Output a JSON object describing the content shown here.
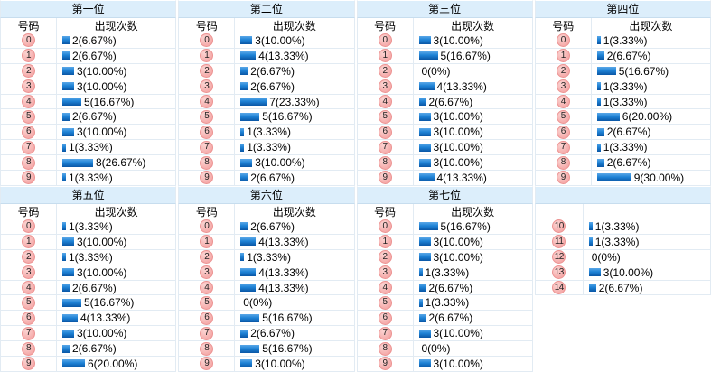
{
  "column_headers": {
    "number": "号码",
    "frequency": "出现次数"
  },
  "colors": {
    "title_bg": "#dceefb",
    "title_border": "#c7ddee",
    "line": "#e2ebf3",
    "bar_top": "#5aa8e8",
    "bar_mid": "#1f83d6",
    "bar_bottom": "#0a57a6",
    "badge_bg": "#f5a9a8",
    "badge_light": "#fbd4d2",
    "badge_border": "#ec9392"
  },
  "chart_data": [
    {
      "type": "bar",
      "title": "第一位",
      "xlabel": "号码",
      "ylabel": "出现次数",
      "show_header": true,
      "continuation": false,
      "categories": [
        "0",
        "1",
        "2",
        "3",
        "4",
        "5",
        "6",
        "7",
        "8",
        "9"
      ],
      "values": [
        2,
        2,
        3,
        3,
        5,
        2,
        3,
        1,
        8,
        1
      ],
      "labels": [
        "2(6.67%)",
        "2(6.67%)",
        "3(10.00%)",
        "3(10.00%)",
        "5(16.67%)",
        "2(6.67%)",
        "3(10.00%)",
        "1(3.33%)",
        "8(26.67%)",
        "1(3.33%)"
      ]
    },
    {
      "type": "bar",
      "title": "第二位",
      "xlabel": "号码",
      "ylabel": "出现次数",
      "show_header": true,
      "continuation": false,
      "categories": [
        "0",
        "1",
        "2",
        "3",
        "4",
        "5",
        "6",
        "7",
        "8",
        "9"
      ],
      "values": [
        3,
        4,
        2,
        2,
        7,
        5,
        1,
        1,
        3,
        2
      ],
      "labels": [
        "3(10.00%)",
        "4(13.33%)",
        "2(6.67%)",
        "2(6.67%)",
        "7(23.33%)",
        "5(16.67%)",
        "1(3.33%)",
        "1(3.33%)",
        "3(10.00%)",
        "2(6.67%)"
      ]
    },
    {
      "type": "bar",
      "title": "第三位",
      "xlabel": "号码",
      "ylabel": "出现次数",
      "show_header": true,
      "continuation": false,
      "categories": [
        "0",
        "1",
        "2",
        "3",
        "4",
        "5",
        "6",
        "7",
        "8",
        "9"
      ],
      "values": [
        3,
        5,
        0,
        4,
        2,
        3,
        3,
        3,
        3,
        4
      ],
      "labels": [
        "3(10.00%)",
        "5(16.67%)",
        "0(0%)",
        "4(13.33%)",
        "2(6.67%)",
        "3(10.00%)",
        "3(10.00%)",
        "3(10.00%)",
        "3(10.00%)",
        "4(13.33%)"
      ]
    },
    {
      "type": "bar",
      "title": "第四位",
      "xlabel": "号码",
      "ylabel": "出现次数",
      "show_header": true,
      "continuation": false,
      "categories": [
        "0",
        "1",
        "2",
        "3",
        "4",
        "5",
        "6",
        "7",
        "8",
        "9"
      ],
      "values": [
        1,
        2,
        5,
        1,
        1,
        6,
        2,
        1,
        2,
        9
      ],
      "labels": [
        "1(3.33%)",
        "2(6.67%)",
        "5(16.67%)",
        "1(3.33%)",
        "1(3.33%)",
        "6(20.00%)",
        "2(6.67%)",
        "1(3.33%)",
        "2(6.67%)",
        "9(30.00%)"
      ]
    },
    {
      "type": "bar",
      "title": "第五位",
      "xlabel": "号码",
      "ylabel": "出现次数",
      "show_header": true,
      "continuation": false,
      "categories": [
        "0",
        "1",
        "2",
        "3",
        "4",
        "5",
        "6",
        "7",
        "8",
        "9"
      ],
      "values": [
        1,
        3,
        1,
        3,
        2,
        5,
        4,
        3,
        2,
        6
      ],
      "labels": [
        "1(3.33%)",
        "3(10.00%)",
        "1(3.33%)",
        "3(10.00%)",
        "2(6.67%)",
        "5(16.67%)",
        "4(13.33%)",
        "3(10.00%)",
        "2(6.67%)",
        "6(20.00%)"
      ]
    },
    {
      "type": "bar",
      "title": "第六位",
      "xlabel": "号码",
      "ylabel": "出现次数",
      "show_header": true,
      "continuation": false,
      "categories": [
        "0",
        "1",
        "2",
        "3",
        "4",
        "5",
        "6",
        "7",
        "8",
        "9"
      ],
      "values": [
        2,
        4,
        1,
        4,
        4,
        0,
        5,
        2,
        5,
        3
      ],
      "labels": [
        "2(6.67%)",
        "4(13.33%)",
        "1(3.33%)",
        "4(13.33%)",
        "4(13.33%)",
        "0(0%)",
        "5(16.67%)",
        "2(6.67%)",
        "5(16.67%)",
        "3(10.00%)"
      ]
    },
    {
      "type": "bar",
      "title": "第七位",
      "xlabel": "号码",
      "ylabel": "出现次数",
      "show_header": true,
      "continuation": false,
      "categories": [
        "0",
        "1",
        "2",
        "3",
        "4",
        "5",
        "6",
        "7",
        "8",
        "9"
      ],
      "values": [
        5,
        3,
        3,
        1,
        2,
        1,
        2,
        3,
        0,
        3
      ],
      "labels": [
        "5(16.67%)",
        "3(10.00%)",
        "3(10.00%)",
        "1(3.33%)",
        "2(6.67%)",
        "1(3.33%)",
        "2(6.67%)",
        "3(10.00%)",
        "0(0%)",
        "3(10.00%)"
      ]
    },
    {
      "type": "bar",
      "title": "",
      "xlabel": "",
      "ylabel": "",
      "show_header": false,
      "continuation": true,
      "categories": [
        "10",
        "11",
        "12",
        "13",
        "14"
      ],
      "values": [
        1,
        1,
        0,
        3,
        2
      ],
      "labels": [
        "1(3.33%)",
        "1(3.33%)",
        "0(0%)",
        "3(10.00%)",
        "2(6.67%)"
      ]
    }
  ]
}
